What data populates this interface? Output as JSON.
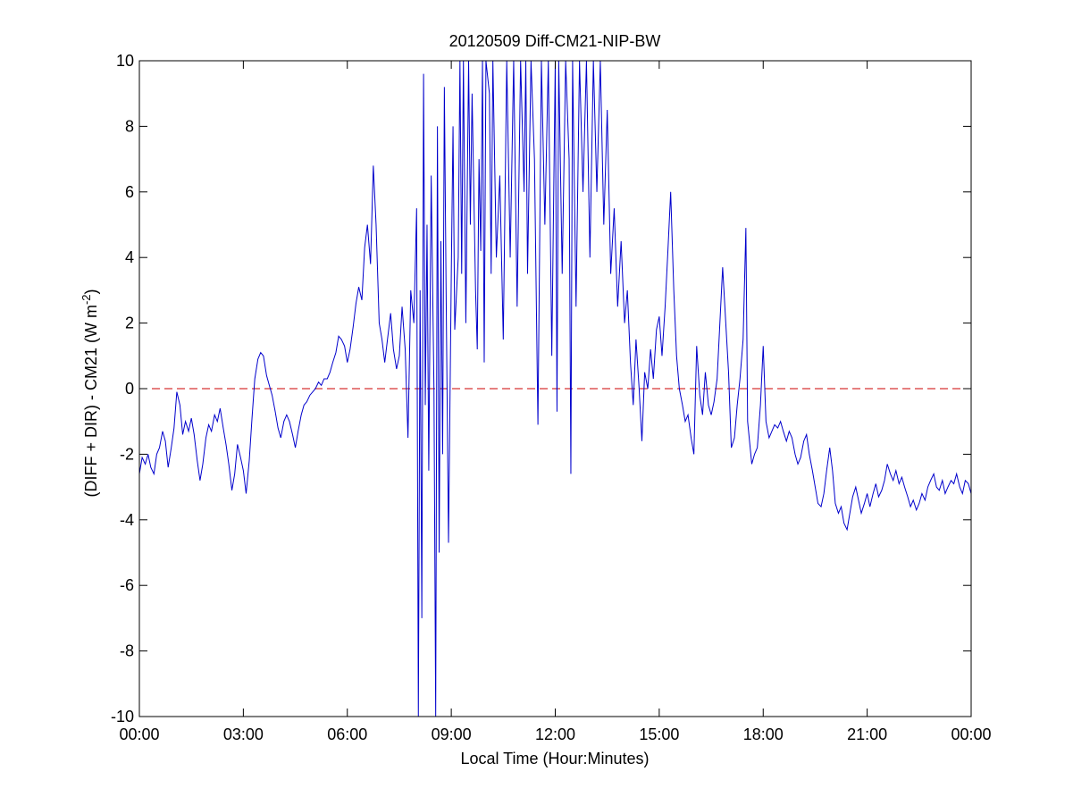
{
  "chart_data": {
    "type": "line",
    "title": "20120509 Diff-CM21-NIP-BW",
    "xlabel": "Local Time (Hour:Minutes)",
    "ylabel": {
      "prefix": "(DIFF + DIR) - CM21 (W m",
      "superscript": "-2",
      "suffix": ")"
    },
    "x_ticks": [
      "00:00",
      "03:00",
      "06:00",
      "09:00",
      "12:00",
      "15:00",
      "18:00",
      "21:00",
      "00:00"
    ],
    "x_unit": "hours",
    "xlim": [
      0,
      24
    ],
    "ylim": [
      -10,
      10
    ],
    "y_ticks": [
      -10,
      -8,
      -6,
      -4,
      -2,
      0,
      2,
      4,
      6,
      8,
      10
    ],
    "grid": false,
    "reference_line": {
      "y": 0,
      "color": "#cc0000",
      "style": "dashed"
    },
    "series": [
      {
        "color": "#0000cc",
        "points": [
          [
            0.0,
            -2.6
          ],
          [
            0.08,
            -2.1
          ],
          [
            0.17,
            -2.3
          ],
          [
            0.25,
            -2.0
          ],
          [
            0.33,
            -2.4
          ],
          [
            0.42,
            -2.6
          ],
          [
            0.5,
            -2.0
          ],
          [
            0.58,
            -1.8
          ],
          [
            0.67,
            -1.3
          ],
          [
            0.75,
            -1.6
          ],
          [
            0.83,
            -2.4
          ],
          [
            0.92,
            -1.8
          ],
          [
            1.0,
            -1.2
          ],
          [
            1.08,
            -0.1
          ],
          [
            1.17,
            -0.5
          ],
          [
            1.25,
            -1.4
          ],
          [
            1.33,
            -1.0
          ],
          [
            1.42,
            -1.3
          ],
          [
            1.5,
            -0.9
          ],
          [
            1.58,
            -1.4
          ],
          [
            1.67,
            -2.2
          ],
          [
            1.75,
            -2.8
          ],
          [
            1.83,
            -2.3
          ],
          [
            1.92,
            -1.5
          ],
          [
            2.0,
            -1.1
          ],
          [
            2.08,
            -1.3
          ],
          [
            2.17,
            -0.8
          ],
          [
            2.25,
            -1.0
          ],
          [
            2.33,
            -0.6
          ],
          [
            2.42,
            -1.2
          ],
          [
            2.5,
            -1.7
          ],
          [
            2.58,
            -2.3
          ],
          [
            2.67,
            -3.1
          ],
          [
            2.75,
            -2.6
          ],
          [
            2.83,
            -1.7
          ],
          [
            2.92,
            -2.1
          ],
          [
            3.0,
            -2.5
          ],
          [
            3.08,
            -3.2
          ],
          [
            3.17,
            -2.2
          ],
          [
            3.25,
            -0.9
          ],
          [
            3.33,
            0.3
          ],
          [
            3.42,
            0.9
          ],
          [
            3.5,
            1.1
          ],
          [
            3.58,
            1.0
          ],
          [
            3.67,
            0.4
          ],
          [
            3.75,
            0.1
          ],
          [
            3.83,
            -0.2
          ],
          [
            3.92,
            -0.7
          ],
          [
            4.0,
            -1.2
          ],
          [
            4.08,
            -1.5
          ],
          [
            4.17,
            -1.0
          ],
          [
            4.25,
            -0.8
          ],
          [
            4.33,
            -1.0
          ],
          [
            4.42,
            -1.4
          ],
          [
            4.5,
            -1.8
          ],
          [
            4.58,
            -1.3
          ],
          [
            4.67,
            -0.8
          ],
          [
            4.75,
            -0.5
          ],
          [
            4.83,
            -0.4
          ],
          [
            4.92,
            -0.2
          ],
          [
            5.0,
            -0.1
          ],
          [
            5.08,
            0.0
          ],
          [
            5.17,
            0.2
          ],
          [
            5.25,
            0.1
          ],
          [
            5.33,
            0.3
          ],
          [
            5.42,
            0.3
          ],
          [
            5.5,
            0.5
          ],
          [
            5.58,
            0.8
          ],
          [
            5.67,
            1.1
          ],
          [
            5.75,
            1.6
          ],
          [
            5.83,
            1.5
          ],
          [
            5.92,
            1.3
          ],
          [
            6.0,
            0.8
          ],
          [
            6.08,
            1.2
          ],
          [
            6.17,
            1.9
          ],
          [
            6.25,
            2.6
          ],
          [
            6.33,
            3.1
          ],
          [
            6.42,
            2.7
          ],
          [
            6.5,
            4.3
          ],
          [
            6.58,
            5.0
          ],
          [
            6.67,
            3.8
          ],
          [
            6.75,
            6.8
          ],
          [
            6.83,
            5.0
          ],
          [
            6.92,
            2.0
          ],
          [
            7.0,
            1.5
          ],
          [
            7.08,
            0.8
          ],
          [
            7.17,
            1.6
          ],
          [
            7.25,
            2.3
          ],
          [
            7.33,
            1.2
          ],
          [
            7.42,
            0.6
          ],
          [
            7.5,
            1.0
          ],
          [
            7.58,
            2.5
          ],
          [
            7.67,
            1.2
          ],
          [
            7.75,
            -1.5
          ],
          [
            7.83,
            3.0
          ],
          [
            7.92,
            2.0
          ],
          [
            8.0,
            5.5
          ],
          [
            8.05,
            -10
          ],
          [
            8.1,
            3.0
          ],
          [
            8.15,
            -7.0
          ],
          [
            8.2,
            9.6
          ],
          [
            8.25,
            -0.5
          ],
          [
            8.3,
            5.0
          ],
          [
            8.35,
            -2.5
          ],
          [
            8.42,
            6.5
          ],
          [
            8.5,
            0.0
          ],
          [
            8.55,
            -10
          ],
          [
            8.6,
            8.0
          ],
          [
            8.65,
            -5.0
          ],
          [
            8.7,
            4.5
          ],
          [
            8.75,
            -2.0
          ],
          [
            8.8,
            9.2
          ],
          [
            8.85,
            3.0
          ],
          [
            8.92,
            -4.7
          ],
          [
            9.0,
            3.5
          ],
          [
            9.05,
            8.0
          ],
          [
            9.1,
            1.8
          ],
          [
            9.2,
            4.0
          ],
          [
            9.25,
            10
          ],
          [
            9.3,
            3.5
          ],
          [
            9.35,
            10
          ],
          [
            9.42,
            2.0
          ],
          [
            9.5,
            10
          ],
          [
            9.55,
            5.0
          ],
          [
            9.6,
            9.0
          ],
          [
            9.7,
            3.0
          ],
          [
            9.75,
            1.2
          ],
          [
            9.8,
            7.0
          ],
          [
            9.85,
            4.2
          ],
          [
            9.9,
            10
          ],
          [
            9.95,
            0.8
          ],
          [
            10.0,
            10
          ],
          [
            10.1,
            9.0
          ],
          [
            10.15,
            3.5
          ],
          [
            10.2,
            10
          ],
          [
            10.3,
            4.0
          ],
          [
            10.4,
            6.5
          ],
          [
            10.5,
            1.5
          ],
          [
            10.6,
            10
          ],
          [
            10.7,
            4.0
          ],
          [
            10.8,
            10
          ],
          [
            10.9,
            2.5
          ],
          [
            11.0,
            10
          ],
          [
            11.1,
            6.0
          ],
          [
            11.15,
            10
          ],
          [
            11.2,
            3.5
          ],
          [
            11.3,
            10
          ],
          [
            11.4,
            7.0
          ],
          [
            11.5,
            -1.1
          ],
          [
            11.6,
            10
          ],
          [
            11.7,
            5.0
          ],
          [
            11.8,
            10
          ],
          [
            11.9,
            1.0
          ],
          [
            12.0,
            10
          ],
          [
            12.05,
            -0.7
          ],
          [
            12.1,
            10
          ],
          [
            12.2,
            3.5
          ],
          [
            12.3,
            10
          ],
          [
            12.4,
            7.0
          ],
          [
            12.45,
            -2.6
          ],
          [
            12.5,
            10
          ],
          [
            12.6,
            2.5
          ],
          [
            12.7,
            10
          ],
          [
            12.8,
            6.0
          ],
          [
            12.9,
            10
          ],
          [
            13.0,
            4.0
          ],
          [
            13.1,
            10
          ],
          [
            13.2,
            6.0
          ],
          [
            13.3,
            10
          ],
          [
            13.4,
            5.0
          ],
          [
            13.5,
            8.5
          ],
          [
            13.6,
            3.5
          ],
          [
            13.7,
            5.5
          ],
          [
            13.8,
            2.5
          ],
          [
            13.9,
            4.5
          ],
          [
            14.0,
            2.0
          ],
          [
            14.08,
            3.0
          ],
          [
            14.17,
            0.8
          ],
          [
            14.25,
            -0.5
          ],
          [
            14.33,
            1.5
          ],
          [
            14.42,
            0.0
          ],
          [
            14.5,
            -1.6
          ],
          [
            14.58,
            0.5
          ],
          [
            14.67,
            0.0
          ],
          [
            14.75,
            1.2
          ],
          [
            14.83,
            0.3
          ],
          [
            14.92,
            1.8
          ],
          [
            15.0,
            2.2
          ],
          [
            15.08,
            1.0
          ],
          [
            15.17,
            2.5
          ],
          [
            15.25,
            4.2
          ],
          [
            15.33,
            6.0
          ],
          [
            15.42,
            3.0
          ],
          [
            15.5,
            1.0
          ],
          [
            15.58,
            0.0
          ],
          [
            15.67,
            -0.5
          ],
          [
            15.75,
            -1.0
          ],
          [
            15.83,
            -0.8
          ],
          [
            15.92,
            -1.5
          ],
          [
            16.0,
            -2.0
          ],
          [
            16.08,
            1.3
          ],
          [
            16.17,
            -0.2
          ],
          [
            16.25,
            -0.8
          ],
          [
            16.33,
            0.5
          ],
          [
            16.42,
            -0.5
          ],
          [
            16.5,
            -0.8
          ],
          [
            16.58,
            -0.4
          ],
          [
            16.67,
            0.3
          ],
          [
            16.75,
            2.0
          ],
          [
            16.83,
            3.7
          ],
          [
            16.92,
            2.0
          ],
          [
            17.0,
            0.5
          ],
          [
            17.08,
            -1.8
          ],
          [
            17.17,
            -1.5
          ],
          [
            17.25,
            -0.5
          ],
          [
            17.33,
            0.3
          ],
          [
            17.42,
            1.5
          ],
          [
            17.5,
            4.9
          ],
          [
            17.55,
            -1.0
          ],
          [
            17.67,
            -2.3
          ],
          [
            17.75,
            -2.0
          ],
          [
            17.83,
            -1.8
          ],
          [
            17.92,
            -0.5
          ],
          [
            18.0,
            1.3
          ],
          [
            18.08,
            -1.0
          ],
          [
            18.17,
            -1.5
          ],
          [
            18.25,
            -1.3
          ],
          [
            18.33,
            -1.1
          ],
          [
            18.42,
            -1.2
          ],
          [
            18.5,
            -1.0
          ],
          [
            18.58,
            -1.3
          ],
          [
            18.67,
            -1.6
          ],
          [
            18.75,
            -1.3
          ],
          [
            18.83,
            -1.5
          ],
          [
            18.92,
            -2.0
          ],
          [
            19.0,
            -2.3
          ],
          [
            19.08,
            -2.1
          ],
          [
            19.17,
            -1.6
          ],
          [
            19.25,
            -1.4
          ],
          [
            19.33,
            -2.0
          ],
          [
            19.42,
            -2.5
          ],
          [
            19.5,
            -3.0
          ],
          [
            19.58,
            -3.5
          ],
          [
            19.67,
            -3.6
          ],
          [
            19.75,
            -3.2
          ],
          [
            19.83,
            -2.5
          ],
          [
            19.92,
            -1.8
          ],
          [
            20.0,
            -2.5
          ],
          [
            20.08,
            -3.5
          ],
          [
            20.17,
            -3.8
          ],
          [
            20.25,
            -3.6
          ],
          [
            20.33,
            -4.1
          ],
          [
            20.42,
            -4.3
          ],
          [
            20.5,
            -3.8
          ],
          [
            20.58,
            -3.3
          ],
          [
            20.67,
            -3.0
          ],
          [
            20.75,
            -3.4
          ],
          [
            20.83,
            -3.8
          ],
          [
            20.92,
            -3.5
          ],
          [
            21.0,
            -3.2
          ],
          [
            21.08,
            -3.6
          ],
          [
            21.17,
            -3.2
          ],
          [
            21.25,
            -2.9
          ],
          [
            21.33,
            -3.3
          ],
          [
            21.42,
            -3.1
          ],
          [
            21.5,
            -2.8
          ],
          [
            21.58,
            -2.3
          ],
          [
            21.67,
            -2.6
          ],
          [
            21.75,
            -2.8
          ],
          [
            21.83,
            -2.5
          ],
          [
            21.92,
            -2.9
          ],
          [
            22.0,
            -2.7
          ],
          [
            22.08,
            -3.0
          ],
          [
            22.17,
            -3.3
          ],
          [
            22.25,
            -3.6
          ],
          [
            22.33,
            -3.4
          ],
          [
            22.42,
            -3.7
          ],
          [
            22.5,
            -3.5
          ],
          [
            22.58,
            -3.2
          ],
          [
            22.67,
            -3.4
          ],
          [
            22.75,
            -3.0
          ],
          [
            22.83,
            -2.8
          ],
          [
            22.92,
            -2.6
          ],
          [
            23.0,
            -3.0
          ],
          [
            23.08,
            -3.1
          ],
          [
            23.17,
            -2.8
          ],
          [
            23.25,
            -3.2
          ],
          [
            23.33,
            -3.0
          ],
          [
            23.42,
            -2.8
          ],
          [
            23.5,
            -2.9
          ],
          [
            23.58,
            -2.6
          ],
          [
            23.67,
            -3.0
          ],
          [
            23.75,
            -3.2
          ],
          [
            23.83,
            -2.8
          ],
          [
            23.92,
            -2.9
          ],
          [
            24.0,
            -3.2
          ]
        ]
      }
    ]
  }
}
